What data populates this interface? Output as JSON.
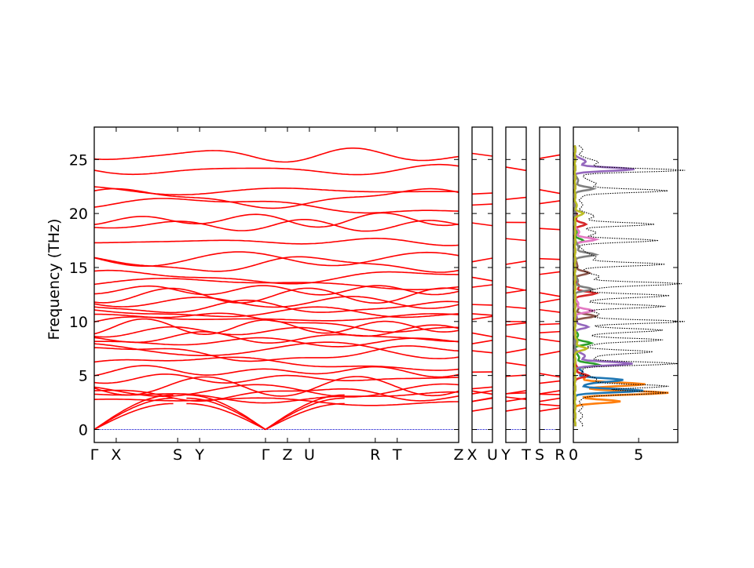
{
  "chart_data": [
    {
      "type": "line",
      "panel": "band-structure",
      "ylabel": "Frequency (THz)",
      "ylim": [
        -1.2,
        28
      ],
      "yticks": [
        0,
        5,
        10,
        15,
        20,
        25
      ],
      "segments": [
        {
          "label_start": "Γ",
          "label_end": "X",
          "positions": [
            0.0,
            0.25
          ]
        },
        {
          "label_start": "X",
          "label_end": "S",
          "positions": [
            0.25,
            0.95
          ]
        },
        {
          "label_start": "S",
          "label_end": "Y",
          "positions": [
            0.95,
            1.2
          ]
        },
        {
          "label_start": "Y",
          "label_end": "Γ",
          "positions": [
            1.2,
            1.95
          ]
        },
        {
          "label_start": "Γ",
          "label_end": "Z",
          "positions": [
            1.95,
            2.2
          ]
        },
        {
          "label_start": "Z",
          "label_end": "U",
          "positions": [
            2.2,
            2.45
          ]
        },
        {
          "label_start": "U",
          "label_end": "R",
          "positions": [
            2.45,
            3.2
          ]
        },
        {
          "label_start": "R",
          "label_end": "T",
          "positions": [
            3.2,
            3.45
          ]
        },
        {
          "label_start": "T",
          "label_end": "Z",
          "positions": [
            3.45,
            4.15
          ]
        }
      ],
      "xtick_labels": [
        "Γ",
        "X",
        "S",
        "Y",
        "Γ",
        "Z",
        "U",
        "R",
        "T",
        "Z"
      ],
      "xtick_positions": [
        0.0,
        0.25,
        0.95,
        1.2,
        1.95,
        2.2,
        2.45,
        3.2,
        3.45,
        4.15
      ],
      "zero_line": 0,
      "flat_bands_thz": [
        2.6,
        3.0,
        3.3,
        3.6,
        4.0,
        4.7,
        5.4,
        6.1,
        7.0,
        7.4,
        8.1,
        8.5,
        9.1,
        9.5,
        9.9,
        10.3,
        10.8,
        11.3,
        11.8,
        12.4,
        12.9,
        13.5,
        14.1,
        15.3,
        15.8,
        17.4,
        18.9,
        19.4,
        20.7,
        21.4,
        22.1,
        24.0,
        25.4
      ],
      "acoustic_max_thz": [
        2.4,
        2.9,
        3.2
      ],
      "color": "#ff0000"
    },
    {
      "type": "line",
      "panel": "band-structure-X-U",
      "xtick_labels": [
        "X",
        "U"
      ],
      "ylim": [
        -1.2,
        28
      ]
    },
    {
      "type": "line",
      "panel": "band-structure-Y-T",
      "xtick_labels": [
        "Y",
        "T"
      ],
      "ylim": [
        -1.2,
        28
      ]
    },
    {
      "type": "line",
      "panel": "band-structure-S-R",
      "xtick_labels": [
        "S",
        "R"
      ],
      "ylim": [
        -1.2,
        28
      ]
    },
    {
      "type": "line",
      "panel": "partial-dos",
      "xlim": [
        0,
        8
      ],
      "xticks": [
        0,
        5
      ],
      "ylim": [
        -1.2,
        28
      ],
      "total_dos_peaks": [
        {
          "freq": 3.4,
          "value": 6.8
        },
        {
          "freq": 4.0,
          "value": 5.5
        },
        {
          "freq": 6.1,
          "value": 7.4
        },
        {
          "freq": 7.2,
          "value": 5.0
        },
        {
          "freq": 8.3,
          "value": 6.0
        },
        {
          "freq": 9.2,
          "value": 5.5
        },
        {
          "freq": 10.0,
          "value": 7.0
        },
        {
          "freq": 11.4,
          "value": 6.3
        },
        {
          "freq": 12.4,
          "value": 6.1
        },
        {
          "freq": 13.5,
          "value": 7.5
        },
        {
          "freq": 15.3,
          "value": 6.6
        },
        {
          "freq": 17.5,
          "value": 5.8
        },
        {
          "freq": 19.0,
          "value": 5.5
        },
        {
          "freq": 22.1,
          "value": 6.8
        },
        {
          "freq": 24.0,
          "value": 7.9
        }
      ],
      "series": [
        {
          "color": "#ff7f0e",
          "peaks": [
            {
              "freq": 3.4,
              "value": 6.6
            },
            {
              "freq": 4.2,
              "value": 4.3
            },
            {
              "freq": 2.6,
              "value": 3.5
            }
          ]
        },
        {
          "color": "#1f77b4",
          "peaks": [
            {
              "freq": 3.6,
              "value": 5.2
            },
            {
              "freq": 4.6,
              "value": 3.2
            }
          ]
        },
        {
          "color": "#2ca02c",
          "peaks": [
            {
              "freq": 6.0,
              "value": 1.8
            },
            {
              "freq": 8.0,
              "value": 1.2
            },
            {
              "freq": 17.5,
              "value": 0.6
            }
          ]
        },
        {
          "color": "#d62728",
          "peaks": [
            {
              "freq": 5.0,
              "value": 1.0
            },
            {
              "freq": 12.6,
              "value": 1.6
            },
            {
              "freq": 19.0,
              "value": 0.8
            }
          ]
        },
        {
          "color": "#9467bd",
          "peaks": [
            {
              "freq": 6.1,
              "value": 4.4
            },
            {
              "freq": 24.1,
              "value": 4.5
            },
            {
              "freq": 9.5,
              "value": 1.0
            }
          ]
        },
        {
          "color": "#8c564b",
          "peaks": [
            {
              "freq": 10.5,
              "value": 1.5
            },
            {
              "freq": 14.5,
              "value": 1.1
            }
          ]
        },
        {
          "color": "#e377c2",
          "peaks": [
            {
              "freq": 11.0,
              "value": 1.4
            },
            {
              "freq": 17.6,
              "value": 1.6
            }
          ]
        },
        {
          "color": "#7f7f7f",
          "peaks": [
            {
              "freq": 16.2,
              "value": 1.6
            },
            {
              "freq": 22.3,
              "value": 1.4
            },
            {
              "freq": 13.0,
              "value": 1.3
            }
          ]
        },
        {
          "color": "#bcbd22",
          "peaks": [
            {
              "freq": 7.5,
              "value": 0.9
            },
            {
              "freq": 20.0,
              "value": 0.6
            }
          ]
        }
      ]
    }
  ]
}
